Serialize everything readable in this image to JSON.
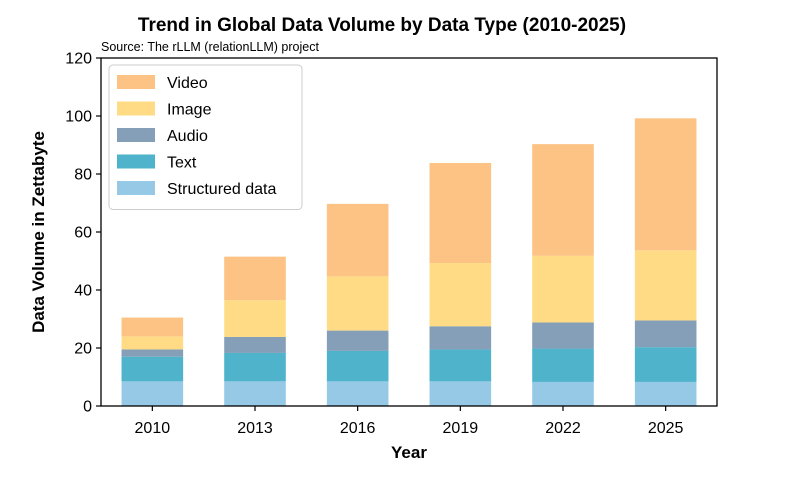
{
  "chart_data": {
    "type": "bar",
    "stacked": true,
    "title": "Trend in Global Data Volume by Data Type (2010-2025)",
    "subtitle": "Source: The rLLM (relationLLM) project",
    "xlabel": "Year",
    "ylabel": "Data Volume in Zettabyte",
    "ylim": [
      0,
      120
    ],
    "yticks": [
      0,
      20,
      40,
      60,
      80,
      100,
      120
    ],
    "categories": [
      "2010",
      "2013",
      "2016",
      "2019",
      "2022",
      "2025"
    ],
    "legend_position": "top-left",
    "grid": false,
    "series": [
      {
        "name": "Structured data",
        "color": "#95c9e6",
        "values": [
          8.5,
          8.5,
          8.5,
          8.5,
          8.3,
          8.3
        ]
      },
      {
        "name": "Text",
        "color": "#4fb3cb",
        "values": [
          8.5,
          9.8,
          10.5,
          11.0,
          11.5,
          12.0
        ]
      },
      {
        "name": "Audio",
        "color": "#849fb7",
        "values": [
          2.5,
          5.5,
          7.0,
          8.0,
          9.0,
          9.2
        ]
      },
      {
        "name": "Image",
        "color": "#ffdb85",
        "values": [
          4.5,
          12.7,
          18.7,
          21.8,
          23.0,
          24.2
        ]
      },
      {
        "name": "Video",
        "color": "#fcc384",
        "values": [
          6.5,
          15.0,
          25.0,
          34.5,
          38.5,
          45.5
        ]
      }
    ]
  }
}
